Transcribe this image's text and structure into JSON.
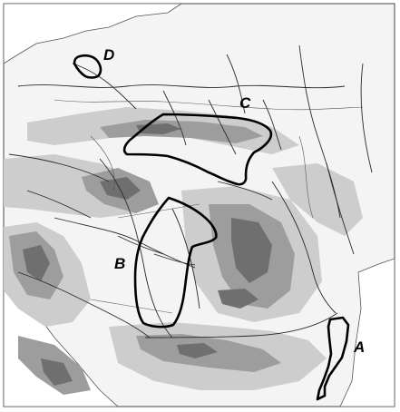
{
  "map": {
    "colors": {
      "background": "#ffffff",
      "lowland": "#f2f2f2",
      "hill": "#c8c8c8",
      "mountain": "#9a9a9a",
      "high_mountain": "#6e6e6e",
      "river": "#2a2a2a",
      "region_outline": "#000000"
    },
    "regions": [
      {
        "id": "region-a",
        "label": "A"
      },
      {
        "id": "region-b",
        "label": "B"
      },
      {
        "id": "region-c",
        "label": "C"
      },
      {
        "id": "region-d",
        "label": "D"
      }
    ]
  }
}
